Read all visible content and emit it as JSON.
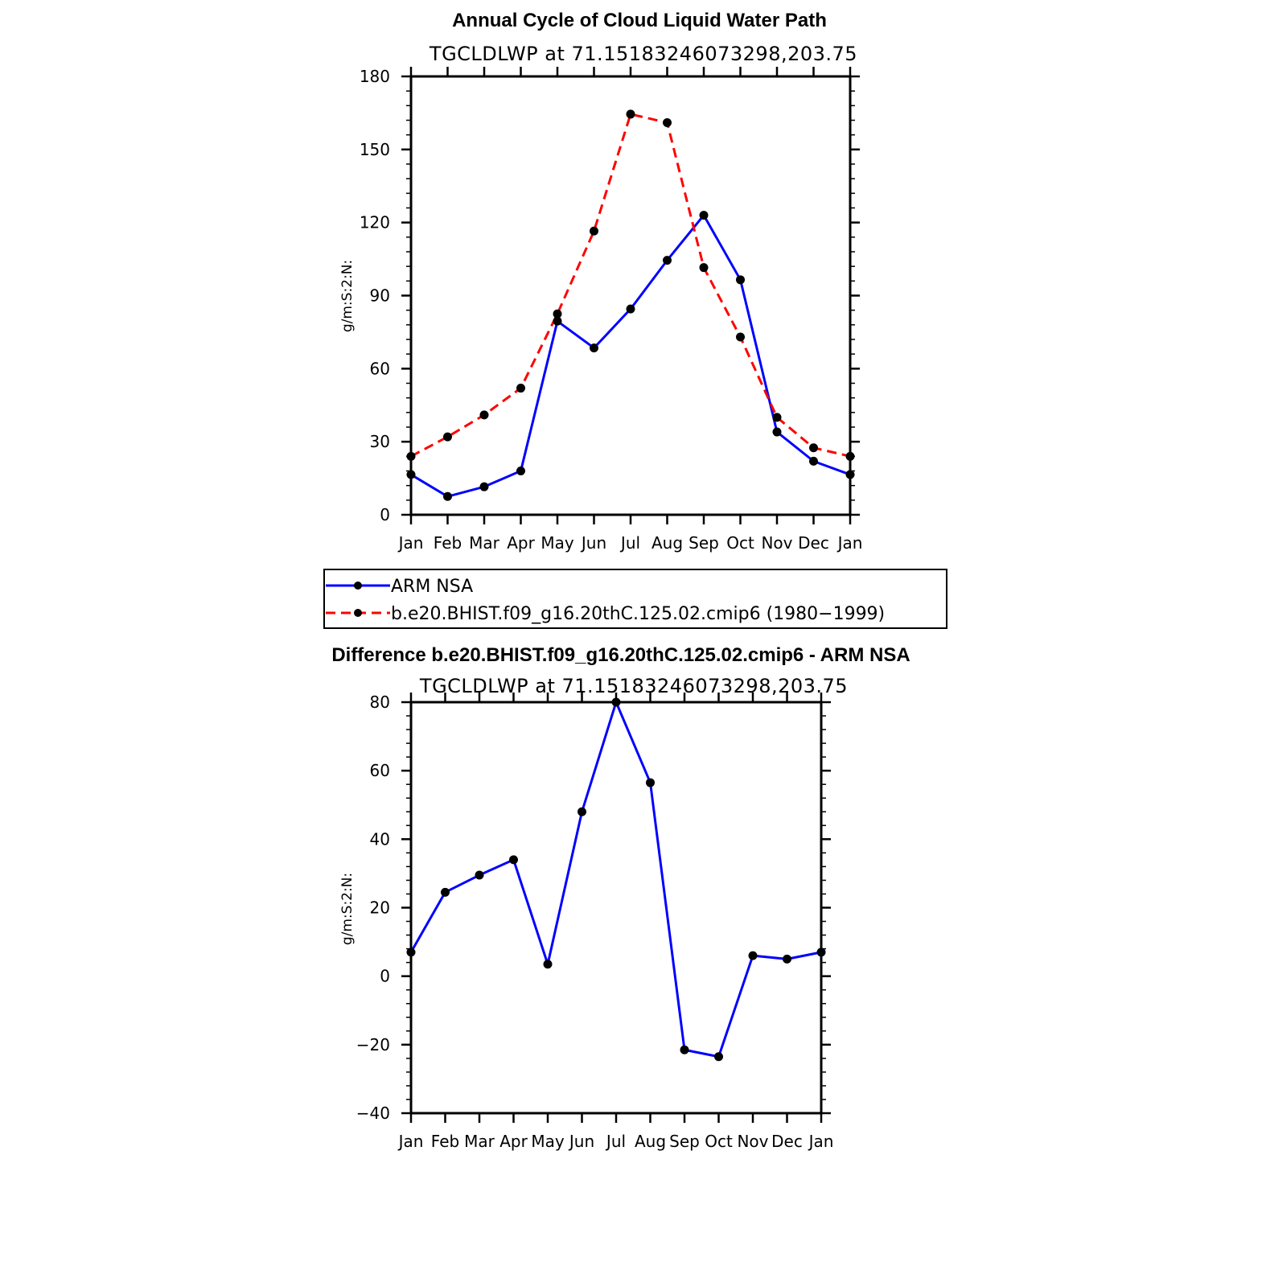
{
  "chart_data": [
    {
      "type": "line",
      "title": "Annual Cycle of Cloud Liquid Water Path",
      "subtitle": "TGCLDLWP  at  71.15183246073298,203.75",
      "ylabel": "g/m:S:2:N:",
      "xlabel": "",
      "ylim": [
        0,
        180
      ],
      "yticks": [
        "0",
        "30",
        "60",
        "90",
        "120",
        "150",
        "180"
      ],
      "ytick_values": [
        0,
        30,
        60,
        90,
        120,
        150,
        180
      ],
      "categories": [
        "Jan",
        "Feb",
        "Mar",
        "Apr",
        "May",
        "Jun",
        "Jul",
        "Aug",
        "Sep",
        "Oct",
        "Nov",
        "Dec",
        "Jan"
      ],
      "series": [
        {
          "name": "ARM  NSA",
          "color": "#0000ff",
          "dash": "solid",
          "values": [
            16.5,
            7.5,
            11.5,
            18,
            79.5,
            68.5,
            84.5,
            104.5,
            123,
            96.5,
            34,
            22,
            16.5
          ]
        },
        {
          "name": "b.e20.BHIST.f09_g16.20thC.125.02.cmip6  (1980−1999)",
          "color": "#ff0000",
          "dash": "dashed",
          "values": [
            24,
            32,
            41,
            52,
            82.5,
            116.5,
            164.5,
            161,
            101.5,
            73,
            40,
            27.5,
            24
          ]
        }
      ],
      "legend_position": "below"
    },
    {
      "type": "line",
      "title": "Difference b.e20.BHIST.f09_g16.20thC.125.02.cmip6 - ARM NSA",
      "subtitle": "TGCLDLWP  at  71.15183246073298,203.75",
      "ylabel": "g/m:S:2:N:",
      "xlabel": "",
      "ylim": [
        -40,
        80
      ],
      "yticks": [
        "−40",
        "−20",
        "0",
        "20",
        "40",
        "60",
        "80"
      ],
      "ytick_values": [
        -40,
        -20,
        0,
        20,
        40,
        60,
        80
      ],
      "categories": [
        "Jan",
        "Feb",
        "Mar",
        "Apr",
        "May",
        "Jun",
        "Jul",
        "Aug",
        "Sep",
        "Oct",
        "Nov",
        "Dec",
        "Jan"
      ],
      "series": [
        {
          "name": "Difference",
          "color": "#0000ff",
          "dash": "solid",
          "values": [
            7,
            24.5,
            29.5,
            34,
            3.5,
            48,
            80,
            56.5,
            -21.5,
            -23.5,
            6,
            5,
            7
          ]
        }
      ]
    }
  ]
}
